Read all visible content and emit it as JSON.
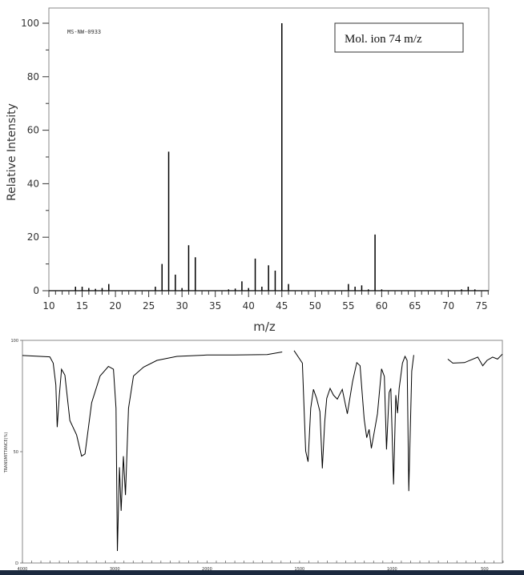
{
  "chart_data": [
    {
      "type": "bar",
      "id": "mass-spectrum",
      "code_label": "MS-NW-0933",
      "annotation": "Mol. ion 74 m/z",
      "xlabel": "m/z",
      "ylabel": "Relative Intensity",
      "xlim": [
        10,
        76
      ],
      "ylim": [
        0,
        100
      ],
      "xticks": [
        10,
        15,
        20,
        25,
        30,
        35,
        40,
        45,
        50,
        55,
        60,
        65,
        70,
        75
      ],
      "yticks": [
        0,
        20,
        40,
        60,
        80,
        100
      ],
      "grid": false,
      "peaks": [
        [
          14,
          1.5
        ],
        [
          15,
          1.5
        ],
        [
          16,
          1
        ],
        [
          17,
          0.7
        ],
        [
          18,
          1
        ],
        [
          19,
          2.5
        ],
        [
          26,
          1.5
        ],
        [
          27,
          10
        ],
        [
          28,
          52
        ],
        [
          29,
          6
        ],
        [
          30,
          1
        ],
        [
          31,
          17
        ],
        [
          32,
          12.5
        ],
        [
          37,
          0.5
        ],
        [
          38,
          0.8
        ],
        [
          39,
          3.5
        ],
        [
          40,
          1
        ],
        [
          41,
          12
        ],
        [
          42,
          1.5
        ],
        [
          43,
          9.5
        ],
        [
          44,
          7.5
        ],
        [
          45,
          100
        ],
        [
          46,
          2.5
        ],
        [
          55,
          2.5
        ],
        [
          56,
          1.5
        ],
        [
          57,
          2
        ],
        [
          58,
          0.5
        ],
        [
          59,
          21
        ],
        [
          60,
          0.5
        ],
        [
          72,
          0.5
        ],
        [
          73,
          1.5
        ],
        [
          74,
          0.5
        ]
      ],
      "color": "#000000"
    },
    {
      "type": "line",
      "id": "ir-spectrum",
      "ylabel": "TRANSMITTANCE(%)",
      "xlim": [
        4000,
        400
      ],
      "x_scale_break": 2000,
      "ylim": [
        0,
        100
      ],
      "xticks": [
        4000,
        3000,
        2000,
        1500,
        1000,
        500
      ],
      "yticks": [
        {
          "value": 100,
          "label": "100"
        },
        {
          "value": 50,
          "label": "50"
        },
        {
          "value": 0,
          "label": "D"
        }
      ],
      "grid": false,
      "color": "#000000",
      "segments": [
        [
          [
            4000,
            93.2
          ],
          [
            3703,
            92.6
          ],
          [
            3667,
            89.8
          ],
          [
            3638,
            80
          ],
          [
            3623,
            61
          ],
          [
            3601,
            75
          ],
          [
            3576,
            87
          ],
          [
            3540,
            84.4
          ],
          [
            3486,
            64
          ],
          [
            3413,
            57.5
          ],
          [
            3359,
            48
          ],
          [
            3322,
            49
          ],
          [
            3250,
            72
          ],
          [
            3159,
            84
          ],
          [
            3069,
            88.3
          ],
          [
            3014,
            87
          ],
          [
            2986,
            69.5
          ],
          [
            2971,
            5.4
          ],
          [
            2949,
            43
          ],
          [
            2931,
            23.4
          ],
          [
            2906,
            48
          ],
          [
            2884,
            30.5
          ],
          [
            2851,
            69.5
          ],
          [
            2797,
            84
          ],
          [
            2688,
            88
          ],
          [
            2543,
            91
          ],
          [
            2326,
            92.8
          ],
          [
            2000,
            93.4
          ],
          [
            1855,
            93.4
          ],
          [
            1675,
            93.6
          ],
          [
            1594,
            94.8
          ]
        ],
        [
          [
            1530,
            95.4
          ],
          [
            1485,
            89.8
          ],
          [
            1467,
            50.3
          ],
          [
            1454,
            45.5
          ],
          [
            1440,
            69.5
          ],
          [
            1425,
            78
          ],
          [
            1408,
            74
          ],
          [
            1390,
            68
          ],
          [
            1377,
            42.5
          ],
          [
            1364,
            63.5
          ],
          [
            1353,
            74
          ],
          [
            1335,
            78.4
          ],
          [
            1317,
            75.4
          ],
          [
            1296,
            73.6
          ],
          [
            1269,
            78
          ],
          [
            1242,
            67
          ],
          [
            1214,
            81.4
          ],
          [
            1191,
            90
          ],
          [
            1173,
            88.6
          ],
          [
            1151,
            64.7
          ],
          [
            1137,
            56.3
          ],
          [
            1124,
            60
          ],
          [
            1112,
            51.5
          ],
          [
            1094,
            60
          ],
          [
            1079,
            67
          ],
          [
            1057,
            87.2
          ],
          [
            1042,
            83.8
          ],
          [
            1030,
            51
          ],
          [
            1016,
            76.6
          ],
          [
            1007,
            78.4
          ],
          [
            992,
            35.3
          ],
          [
            980,
            75.4
          ],
          [
            971,
            67.3
          ],
          [
            962,
            78.4
          ],
          [
            944,
            89.8
          ],
          [
            930,
            92.8
          ],
          [
            919,
            91
          ],
          [
            910,
            32.3
          ],
          [
            894,
            86.2
          ],
          [
            883,
            93.4
          ]
        ],
        [
          [
            699,
            91.6
          ],
          [
            672,
            89.8
          ],
          [
            609,
            90
          ],
          [
            537,
            92.5
          ],
          [
            510,
            88.6
          ],
          [
            487,
            91
          ],
          [
            457,
            92.5
          ],
          [
            430,
            91.6
          ],
          [
            404,
            93.8
          ]
        ]
      ]
    }
  ]
}
